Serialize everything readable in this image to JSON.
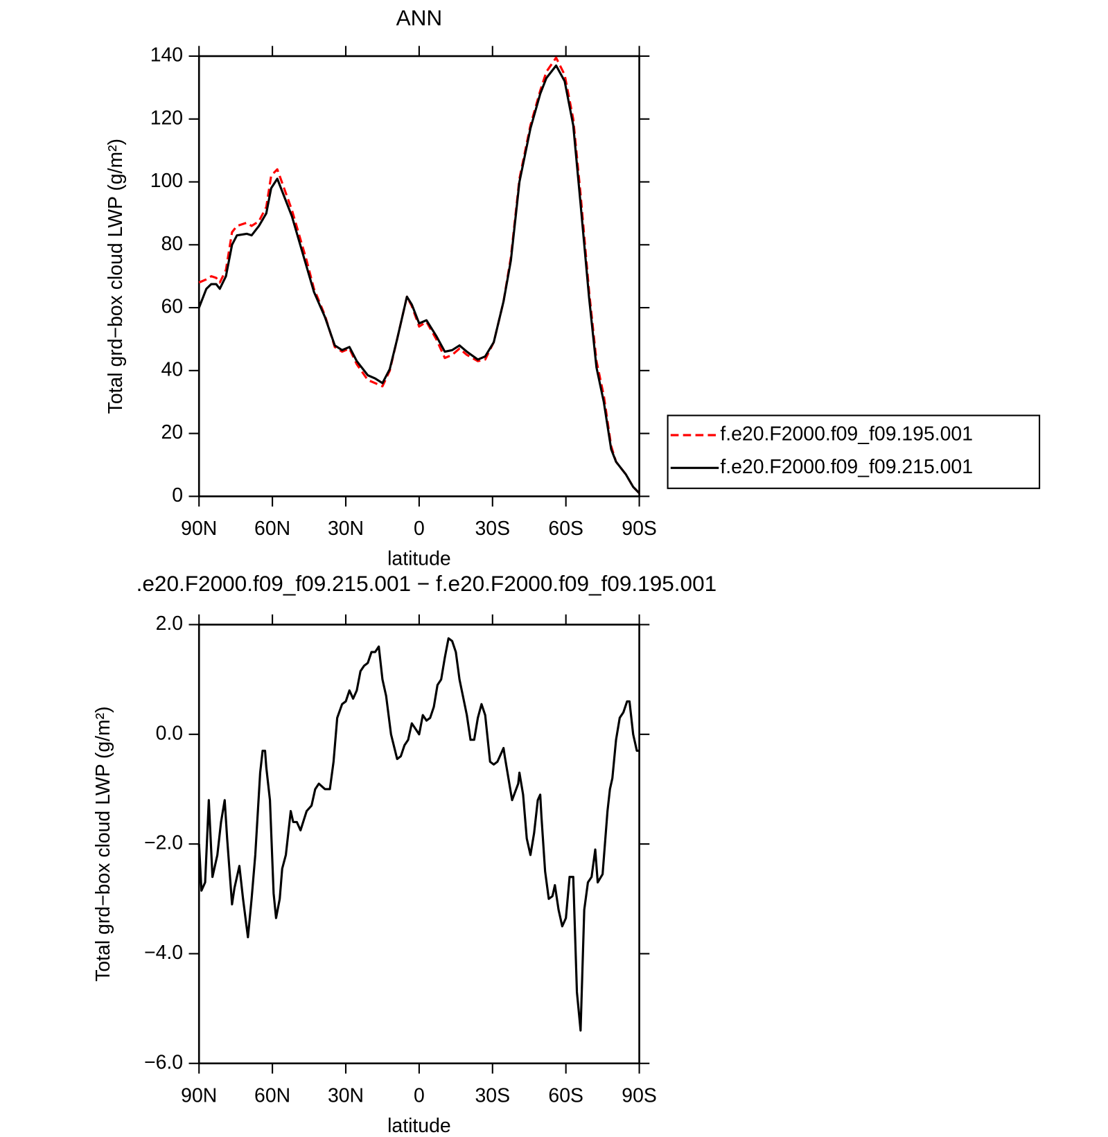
{
  "chart_data": [
    {
      "type": "line",
      "title": "ANN",
      "x_label": "latitude",
      "y_label": "Total grd−box cloud LWP (g/m²)",
      "xlim": [
        90,
        -90
      ],
      "ylim": [
        0,
        140
      ],
      "xticks": [
        {
          "value": 90,
          "label": "90N"
        },
        {
          "value": 60,
          "label": "60N"
        },
        {
          "value": 30,
          "label": "30N"
        },
        0,
        {
          "value": -30,
          "label": "30S"
        },
        {
          "value": -60,
          "label": "60S"
        },
        {
          "value": -90,
          "label": "90S"
        }
      ],
      "yticks": [
        0,
        20,
        40,
        60,
        80,
        100,
        120,
        140
      ],
      "x": [
        90,
        87,
        85,
        83,
        81.5,
        79,
        76.5,
        74.5,
        70.5,
        68.5,
        65.5,
        62.5,
        60.5,
        58,
        52,
        46,
        43,
        38.5,
        34.5,
        31.5,
        28.5,
        25.5,
        21,
        18,
        15,
        12,
        9,
        5,
        3,
        0,
        -3,
        -7,
        -10.5,
        -13.5,
        -16.5,
        -19.5,
        -24,
        -27,
        -30.5,
        -34.5,
        -37.5,
        -41,
        -45.5,
        -49.5,
        -52,
        -56,
        -59.5,
        -63,
        -66,
        -69.5,
        -72.5,
        -75.5,
        -78.5,
        -80.5,
        -84.5,
        -87.5,
        -90
      ],
      "series": [
        {
          "name": "f.e20.F2000.f09_f09.195.001",
          "color": "#ff0000",
          "style": "dashed",
          "values": [
            68,
            69,
            70,
            69.5,
            68,
            72,
            84,
            86,
            87,
            86,
            87.5,
            92,
            102,
            104,
            91,
            75,
            66,
            57.5,
            47.5,
            46,
            47,
            42,
            37,
            36,
            35,
            40,
            50,
            63.5,
            60.5,
            54,
            55.5,
            50,
            44,
            45,
            47,
            45,
            43,
            43.5,
            49,
            62,
            76,
            101,
            118,
            129,
            135,
            139.5,
            134,
            120,
            96,
            65,
            43,
            32,
            16,
            11,
            7,
            3,
            1
          ]
        },
        {
          "name": "f.e20.F2000.f09_f09.215.001",
          "color": "#000000",
          "style": "solid",
          "values": [
            60,
            66,
            67.5,
            67.5,
            66,
            70,
            80,
            83,
            83.5,
            83,
            86,
            90,
            98,
            101,
            89,
            73,
            65,
            57,
            48,
            46.5,
            47.5,
            43,
            38.5,
            37.5,
            36,
            40.5,
            50,
            63.5,
            61,
            55,
            56,
            51,
            46,
            46.5,
            48,
            46,
            43.5,
            44.5,
            49,
            62,
            75,
            100,
            117,
            128,
            133,
            137,
            132,
            118,
            93,
            63,
            41,
            30,
            15,
            11,
            7,
            3,
            1
          ]
        }
      ]
    },
    {
      "type": "line",
      "title": ".e20.F2000.f09_f09.215.001 − f.e20.F2000.f09_f09.195.001",
      "x_label": "latitude",
      "y_label": "Total grd−box cloud LWP (g/m²)",
      "xlim": [
        90,
        -90
      ],
      "ylim": [
        -6,
        2
      ],
      "xticks": [
        {
          "value": 90,
          "label": "90N"
        },
        {
          "value": 60,
          "label": "60N"
        },
        {
          "value": 30,
          "label": "30N"
        },
        0,
        {
          "value": -30,
          "label": "30S"
        },
        {
          "value": -60,
          "label": "60S"
        },
        {
          "value": -90,
          "label": "90S"
        }
      ],
      "yticks": [
        {
          "value": 2,
          "label": "2.0"
        },
        {
          "value": 0,
          "label": "0.0"
        },
        {
          "value": -2,
          "label": "−2.0"
        },
        {
          "value": -4,
          "label": "−4.0"
        },
        {
          "value": -6,
          "label": "−6.0"
        }
      ],
      "x": [
        90,
        89,
        87.5,
        86,
        84.5,
        82.5,
        81,
        79.5,
        78.5,
        76.5,
        75.5,
        73.5,
        72,
        70,
        68.5,
        67,
        65,
        64,
        63,
        62.5,
        61,
        59.5,
        58.5,
        57,
        56,
        54.5,
        52.5,
        51.5,
        50,
        48.5,
        46,
        44,
        42.5,
        41,
        38.5,
        36.5,
        35,
        33.5,
        31.5,
        30,
        28.5,
        27,
        25.5,
        24,
        22.5,
        21,
        19.5,
        18,
        16.5,
        15,
        13.5,
        11.5,
        9,
        7.5,
        6,
        4.5,
        3,
        1.5,
        0,
        -1.5,
        -3,
        -4.5,
        -6,
        -7.5,
        -9,
        -10.5,
        -12,
        -13.5,
        -15,
        -16.5,
        -19.5,
        -21,
        -22.5,
        -24,
        -25.5,
        -27,
        -29,
        -30.5,
        -32,
        -34.5,
        -35,
        -36.5,
        -38,
        -40.5,
        -41,
        -42.5,
        -44,
        -45.5,
        -47,
        -48.5,
        -49.5,
        -50,
        -51.5,
        -53,
        -54.5,
        -55.5,
        -57,
        -58.5,
        -60,
        -61.5,
        -63,
        -64.5,
        -66,
        -67.5,
        -69,
        -70.5,
        -72,
        -73,
        -75,
        -77,
        -78,
        -79,
        -80.5,
        -82,
        -83.5,
        -85,
        -86,
        -87.5,
        -89,
        -90
      ],
      "series": [
        {
          "color": "#000000",
          "style": "solid",
          "values": [
            -2.0,
            -2.85,
            -2.7,
            -1.2,
            -2.6,
            -2.2,
            -1.6,
            -1.2,
            -1.9,
            -3.1,
            -2.8,
            -2.4,
            -3.0,
            -3.7,
            -3.0,
            -2.2,
            -0.7,
            -0.3,
            -0.3,
            -0.6,
            -1.2,
            -2.9,
            -3.35,
            -3.0,
            -2.45,
            -2.2,
            -1.4,
            -1.6,
            -1.6,
            -1.75,
            -1.4,
            -1.3,
            -1.0,
            -0.9,
            -1.0,
            -1.0,
            -0.5,
            0.3,
            0.55,
            0.6,
            0.8,
            0.65,
            0.8,
            1.15,
            1.25,
            1.3,
            1.5,
            1.5,
            1.6,
            1.0,
            0.7,
            0.0,
            -0.45,
            -0.4,
            -0.2,
            -0.1,
            0.2,
            0.1,
            0.0,
            0.35,
            0.25,
            0.3,
            0.5,
            0.9,
            1.0,
            1.4,
            1.75,
            1.7,
            1.5,
            1.0,
            0.35,
            -0.1,
            -0.1,
            0.3,
            0.55,
            0.35,
            -0.5,
            -0.55,
            -0.5,
            -0.25,
            -0.4,
            -0.8,
            -1.2,
            -0.9,
            -0.7,
            -1.1,
            -1.9,
            -2.2,
            -1.8,
            -1.2,
            -1.1,
            -1.5,
            -2.5,
            -3.0,
            -2.95,
            -2.75,
            -3.2,
            -3.5,
            -3.35,
            -2.6,
            -2.6,
            -4.7,
            -5.4,
            -3.2,
            -2.7,
            -2.6,
            -2.1,
            -2.7,
            -2.55,
            -1.4,
            -1.0,
            -0.8,
            -0.1,
            0.3,
            0.4,
            0.6,
            0.6,
            0.0,
            -0.3,
            -0.3
          ]
        }
      ]
    }
  ]
}
